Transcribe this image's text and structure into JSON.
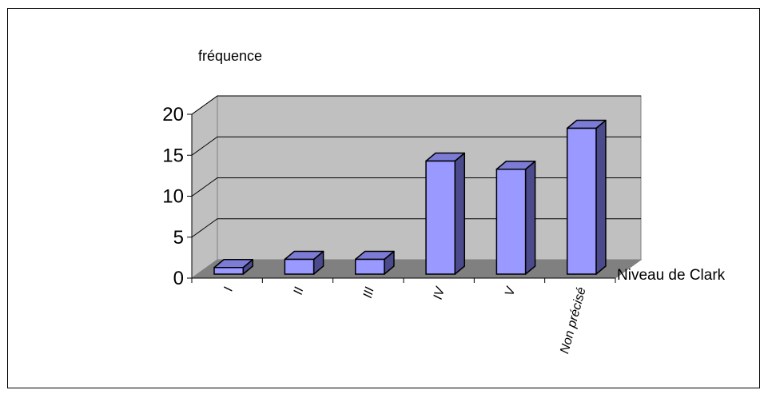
{
  "chart_data": {
    "type": "bar",
    "style": "3d-column",
    "title": "",
    "ylabel": "fréquence",
    "xlabel": "Niveau de Clark",
    "categories": [
      "I",
      "II",
      "III",
      "IV",
      "V",
      "Non précisé"
    ],
    "values": [
      1,
      2,
      2,
      14,
      13,
      18
    ],
    "ylim": [
      0,
      20
    ],
    "yticks": [
      0,
      5,
      10,
      15,
      20
    ],
    "grid": true,
    "legend": "none",
    "colors": {
      "bar_front": "#9999ff",
      "bar_top": "#7c7cd6",
      "bar_side": "#4a4a8c",
      "wall": "#c0c0c0",
      "floor": "#808080",
      "gridline": "#000000"
    }
  }
}
